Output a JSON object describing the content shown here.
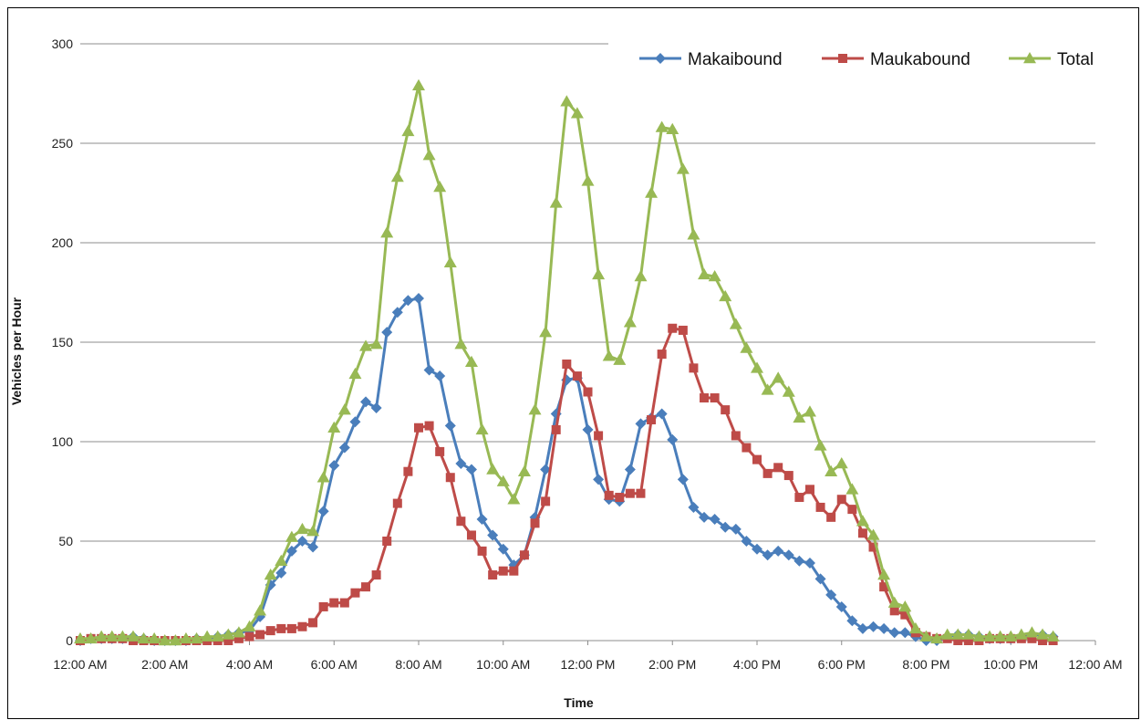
{
  "chart_data": {
    "type": "line",
    "title": "",
    "xlabel": "Time",
    "ylabel": "Vehicles per Hour",
    "ylim": [
      0,
      300
    ],
    "yticks": [
      0,
      50,
      100,
      150,
      200,
      250,
      300
    ],
    "xlim": [
      0,
      24
    ],
    "xticks": [
      {
        "hour": 0,
        "label": "12:00 AM"
      },
      {
        "hour": 2,
        "label": "2:00 AM"
      },
      {
        "hour": 4,
        "label": "4:00 AM"
      },
      {
        "hour": 6,
        "label": "6:00 AM"
      },
      {
        "hour": 8,
        "label": "8:00 AM"
      },
      {
        "hour": 10,
        "label": "10:00 AM"
      },
      {
        "hour": 12,
        "label": "12:00 PM"
      },
      {
        "hour": 14,
        "label": "2:00 PM"
      },
      {
        "hour": 16,
        "label": "4:00 PM"
      },
      {
        "hour": 18,
        "label": "6:00 PM"
      },
      {
        "hour": 20,
        "label": "8:00 PM"
      },
      {
        "hour": 22,
        "label": "10:00 PM"
      },
      {
        "hour": 24,
        "label": "12:00 AM"
      }
    ],
    "grid": true,
    "legend_position": "top-right",
    "series": [
      {
        "name": "Makaibound",
        "color": "#4a7ebb",
        "marker": "diamond",
        "points": [
          [
            0,
            0
          ],
          [
            0.25,
            1
          ],
          [
            0.5,
            1
          ],
          [
            0.75,
            1
          ],
          [
            1,
            1
          ],
          [
            1.25,
            2
          ],
          [
            1.5,
            1
          ],
          [
            1.75,
            0
          ],
          [
            2,
            0
          ],
          [
            2.25,
            0
          ],
          [
            2.5,
            0
          ],
          [
            2.75,
            1
          ],
          [
            3,
            1
          ],
          [
            3.25,
            2
          ],
          [
            3.5,
            3
          ],
          [
            3.75,
            4
          ],
          [
            4,
            5
          ],
          [
            4.25,
            12
          ],
          [
            4.5,
            28
          ],
          [
            4.75,
            34
          ],
          [
            5,
            45
          ],
          [
            5.25,
            50
          ],
          [
            5.5,
            47
          ],
          [
            5.75,
            65
          ],
          [
            6,
            88
          ],
          [
            6.25,
            97
          ],
          [
            6.5,
            110
          ],
          [
            6.75,
            120
          ],
          [
            7,
            117
          ],
          [
            7.25,
            155
          ],
          [
            7.5,
            165
          ],
          [
            7.75,
            171
          ],
          [
            8,
            172
          ],
          [
            8.25,
            136
          ],
          [
            8.5,
            133
          ],
          [
            8.75,
            108
          ],
          [
            9,
            89
          ],
          [
            9.25,
            86
          ],
          [
            9.5,
            61
          ],
          [
            9.75,
            53
          ],
          [
            10,
            46
          ],
          [
            10.25,
            38
          ],
          [
            10.5,
            43
          ],
          [
            10.75,
            62
          ],
          [
            11,
            86
          ],
          [
            11.25,
            114
          ],
          [
            11.5,
            131
          ],
          [
            11.75,
            132
          ],
          [
            12,
            106
          ],
          [
            12.25,
            81
          ],
          [
            12.5,
            71
          ],
          [
            12.75,
            70
          ],
          [
            13,
            86
          ],
          [
            13.25,
            109
          ],
          [
            13.5,
            112
          ],
          [
            13.75,
            114
          ],
          [
            14,
            101
          ],
          [
            14.25,
            81
          ],
          [
            14.5,
            67
          ],
          [
            14.75,
            62
          ],
          [
            15,
            61
          ],
          [
            15.25,
            57
          ],
          [
            15.5,
            56
          ],
          [
            15.75,
            50
          ],
          [
            16,
            46
          ],
          [
            16.25,
            43
          ],
          [
            16.5,
            45
          ],
          [
            16.75,
            43
          ],
          [
            17,
            40
          ],
          [
            17.25,
            39
          ],
          [
            17.5,
            31
          ],
          [
            17.75,
            23
          ],
          [
            18,
            17
          ],
          [
            18.25,
            10
          ],
          [
            18.5,
            6
          ],
          [
            18.75,
            7
          ],
          [
            19,
            6
          ],
          [
            19.25,
            4
          ],
          [
            19.5,
            4
          ],
          [
            19.75,
            2
          ],
          [
            20,
            0
          ],
          [
            20.25,
            0
          ],
          [
            20.5,
            2
          ],
          [
            20.75,
            3
          ],
          [
            21,
            3
          ],
          [
            21.25,
            2
          ],
          [
            21.5,
            1
          ],
          [
            21.75,
            1
          ],
          [
            22,
            1
          ],
          [
            22.25,
            2
          ],
          [
            22.5,
            3
          ],
          [
            22.75,
            3
          ],
          [
            23,
            2
          ]
        ]
      },
      {
        "name": "Maukabound",
        "color": "#be4b48",
        "marker": "square",
        "points": [
          [
            0,
            0
          ],
          [
            0.25,
            1
          ],
          [
            0.5,
            1
          ],
          [
            0.75,
            1
          ],
          [
            1,
            1
          ],
          [
            1.25,
            0
          ],
          [
            1.5,
            0
          ],
          [
            1.75,
            0
          ],
          [
            2,
            0
          ],
          [
            2.25,
            0
          ],
          [
            2.5,
            0
          ],
          [
            2.75,
            0
          ],
          [
            3,
            0
          ],
          [
            3.25,
            0
          ],
          [
            3.5,
            0
          ],
          [
            3.75,
            1
          ],
          [
            4,
            2
          ],
          [
            4.25,
            3
          ],
          [
            4.5,
            5
          ],
          [
            4.75,
            6
          ],
          [
            5,
            6
          ],
          [
            5.25,
            7
          ],
          [
            5.5,
            9
          ],
          [
            5.75,
            17
          ],
          [
            6,
            19
          ],
          [
            6.25,
            19
          ],
          [
            6.5,
            24
          ],
          [
            6.75,
            27
          ],
          [
            7,
            33
          ],
          [
            7.25,
            50
          ],
          [
            7.5,
            69
          ],
          [
            7.75,
            85
          ],
          [
            8,
            107
          ],
          [
            8.25,
            108
          ],
          [
            8.5,
            95
          ],
          [
            8.75,
            82
          ],
          [
            9,
            60
          ],
          [
            9.25,
            53
          ],
          [
            9.5,
            45
          ],
          [
            9.75,
            33
          ],
          [
            10,
            35
          ],
          [
            10.25,
            35
          ],
          [
            10.5,
            43
          ],
          [
            10.75,
            59
          ],
          [
            11,
            70
          ],
          [
            11.25,
            106
          ],
          [
            11.5,
            139
          ],
          [
            11.75,
            133
          ],
          [
            12,
            125
          ],
          [
            12.25,
            103
          ],
          [
            12.5,
            73
          ],
          [
            12.75,
            72
          ],
          [
            13,
            74
          ],
          [
            13.25,
            74
          ],
          [
            13.5,
            111
          ],
          [
            13.75,
            144
          ],
          [
            14,
            157
          ],
          [
            14.25,
            156
          ],
          [
            14.5,
            137
          ],
          [
            14.75,
            122
          ],
          [
            15,
            122
          ],
          [
            15.25,
            116
          ],
          [
            15.5,
            103
          ],
          [
            15.75,
            97
          ],
          [
            16,
            91
          ],
          [
            16.25,
            84
          ],
          [
            16.5,
            87
          ],
          [
            16.75,
            83
          ],
          [
            17,
            72
          ],
          [
            17.25,
            76
          ],
          [
            17.5,
            67
          ],
          [
            17.75,
            62
          ],
          [
            18,
            71
          ],
          [
            18.25,
            66
          ],
          [
            18.5,
            54
          ],
          [
            18.75,
            47
          ],
          [
            19,
            27
          ],
          [
            19.25,
            15
          ],
          [
            19.5,
            13
          ],
          [
            19.75,
            4
          ],
          [
            20,
            2
          ],
          [
            20.25,
            1
          ],
          [
            20.5,
            1
          ],
          [
            20.75,
            0
          ],
          [
            21,
            0
          ],
          [
            21.25,
            0
          ],
          [
            21.5,
            1
          ],
          [
            21.75,
            1
          ],
          [
            22,
            1
          ],
          [
            22.25,
            1
          ],
          [
            22.5,
            1
          ],
          [
            22.75,
            0
          ],
          [
            23,
            0
          ]
        ]
      },
      {
        "name": "Total",
        "color": "#98b954",
        "marker": "triangle",
        "points": [
          [
            0,
            1
          ],
          [
            0.25,
            1
          ],
          [
            0.5,
            2
          ],
          [
            0.75,
            2
          ],
          [
            1,
            2
          ],
          [
            1.25,
            2
          ],
          [
            1.5,
            1
          ],
          [
            1.75,
            1
          ],
          [
            2,
            0
          ],
          [
            2.25,
            0
          ],
          [
            2.5,
            1
          ],
          [
            2.75,
            1
          ],
          [
            3,
            2
          ],
          [
            3.25,
            2
          ],
          [
            3.5,
            3
          ],
          [
            3.75,
            4
          ],
          [
            4,
            7
          ],
          [
            4.25,
            15
          ],
          [
            4.5,
            33
          ],
          [
            4.75,
            40
          ],
          [
            5,
            52
          ],
          [
            5.25,
            56
          ],
          [
            5.5,
            55
          ],
          [
            5.75,
            82
          ],
          [
            6,
            107
          ],
          [
            6.25,
            116
          ],
          [
            6.5,
            134
          ],
          [
            6.75,
            148
          ],
          [
            7,
            149
          ],
          [
            7.25,
            205
          ],
          [
            7.5,
            233
          ],
          [
            7.75,
            256
          ],
          [
            8,
            279
          ],
          [
            8.25,
            244
          ],
          [
            8.5,
            228
          ],
          [
            8.75,
            190
          ],
          [
            9,
            149
          ],
          [
            9.25,
            140
          ],
          [
            9.5,
            106
          ],
          [
            9.75,
            86
          ],
          [
            10,
            80
          ],
          [
            10.25,
            71
          ],
          [
            10.5,
            85
          ],
          [
            10.75,
            116
          ],
          [
            11,
            155
          ],
          [
            11.25,
            220
          ],
          [
            11.5,
            271
          ],
          [
            11.75,
            265
          ],
          [
            12,
            231
          ],
          [
            12.25,
            184
          ],
          [
            12.5,
            143
          ],
          [
            12.75,
            141
          ],
          [
            13,
            160
          ],
          [
            13.25,
            183
          ],
          [
            13.5,
            225
          ],
          [
            13.75,
            258
          ],
          [
            14,
            257
          ],
          [
            14.25,
            237
          ],
          [
            14.5,
            204
          ],
          [
            14.75,
            184
          ],
          [
            15,
            183
          ],
          [
            15.25,
            173
          ],
          [
            15.5,
            159
          ],
          [
            15.75,
            147
          ],
          [
            16,
            137
          ],
          [
            16.25,
            126
          ],
          [
            16.5,
            132
          ],
          [
            16.75,
            125
          ],
          [
            17,
            112
          ],
          [
            17.25,
            115
          ],
          [
            17.5,
            98
          ],
          [
            17.75,
            85
          ],
          [
            18,
            89
          ],
          [
            18.25,
            76
          ],
          [
            18.5,
            60
          ],
          [
            18.75,
            53
          ],
          [
            19,
            33
          ],
          [
            19.25,
            19
          ],
          [
            19.5,
            17
          ],
          [
            19.75,
            6
          ],
          [
            20,
            2
          ],
          [
            20.25,
            1
          ],
          [
            20.5,
            3
          ],
          [
            20.75,
            3
          ],
          [
            21,
            3
          ],
          [
            21.25,
            2
          ],
          [
            21.5,
            2
          ],
          [
            21.75,
            2
          ],
          [
            22,
            2
          ],
          [
            22.25,
            3
          ],
          [
            22.5,
            4
          ],
          [
            22.75,
            3
          ],
          [
            23,
            2
          ]
        ]
      }
    ]
  }
}
